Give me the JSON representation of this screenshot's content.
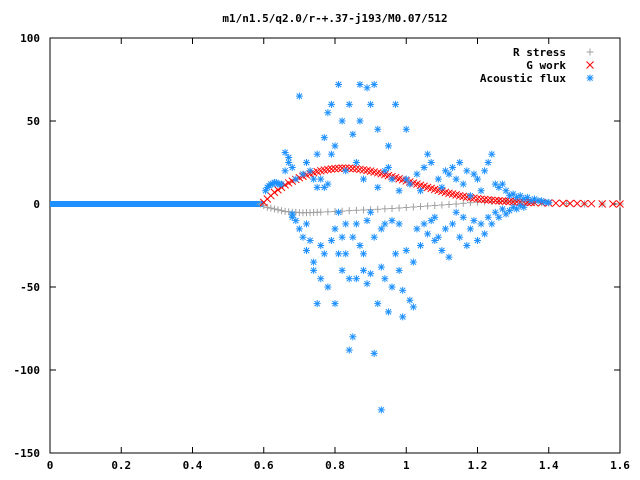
{
  "chart_data": {
    "type": "scatter",
    "title": "m1/n1.5/q2.0/r-+.37-j193/M0.07/512",
    "xlabel": "",
    "ylabel": "",
    "xlim": [
      0,
      1.6
    ],
    "ylim": [
      -150,
      100
    ],
    "x_ticks": [
      0,
      0.2,
      0.4,
      0.6,
      0.8,
      1,
      1.2,
      1.4,
      1.6
    ],
    "x_tick_labels": [
      "0",
      "0.2",
      "0.4",
      "0.6",
      "0.8",
      "1",
      "1.2",
      "1.4",
      "1.6"
    ],
    "y_ticks": [
      -150,
      -100,
      -50,
      0,
      50,
      100
    ],
    "y_tick_labels": [
      "-150",
      "-100",
      "-50",
      "0",
      "50",
      "100"
    ],
    "grid": false,
    "legend_position": "top-right",
    "series": [
      {
        "name": "R stress",
        "marker": "plus",
        "color": "#a0a0a0",
        "x": [
          0.59,
          0.6,
          0.61,
          0.62,
          0.63,
          0.64,
          0.65,
          0.66,
          0.67,
          0.68,
          0.69,
          0.7,
          0.71,
          0.72,
          0.73,
          0.74,
          0.75,
          0.76,
          0.78,
          0.8,
          0.82,
          0.84,
          0.86,
          0.88,
          0.9,
          0.92,
          0.94,
          0.96,
          0.98,
          1.0,
          1.02,
          1.04,
          1.06,
          1.08,
          1.1,
          1.12,
          1.14,
          1.16,
          1.18,
          1.2,
          1.22,
          1.24,
          1.26,
          1.28,
          1.3,
          1.32,
          1.34,
          1.36,
          1.38,
          1.4,
          1.45,
          1.5,
          1.55,
          1.6
        ],
        "y": [
          0,
          -1,
          -2,
          -2.5,
          -3,
          -3.5,
          -4,
          -4.5,
          -4.7,
          -5,
          -5,
          -5.2,
          -5.3,
          -5.2,
          -5.2,
          -5.1,
          -5,
          -4.9,
          -4.7,
          -4.5,
          -4.3,
          -4,
          -3.8,
          -3.6,
          -3.4,
          -3.2,
          -2.9,
          -2.7,
          -2.4,
          -2.1,
          -1.8,
          -1.5,
          -1.2,
          -0.9,
          -0.6,
          -0.3,
          0,
          0.4,
          0.8,
          1.1,
          1.3,
          1.5,
          1.6,
          1.6,
          1.5,
          1.3,
          1.1,
          0.9,
          0.7,
          0.5,
          0.3,
          0.1,
          0,
          0
        ]
      },
      {
        "name": "G work",
        "marker": "cross",
        "color": "#ff0000",
        "x": [
          0.6,
          0.61,
          0.62,
          0.63,
          0.64,
          0.65,
          0.66,
          0.67,
          0.68,
          0.69,
          0.7,
          0.71,
          0.72,
          0.73,
          0.74,
          0.75,
          0.76,
          0.77,
          0.78,
          0.79,
          0.8,
          0.81,
          0.82,
          0.83,
          0.84,
          0.85,
          0.86,
          0.87,
          0.88,
          0.89,
          0.9,
          0.91,
          0.92,
          0.93,
          0.94,
          0.95,
          0.96,
          0.97,
          0.98,
          0.99,
          1.0,
          1.01,
          1.02,
          1.03,
          1.04,
          1.05,
          1.06,
          1.07,
          1.08,
          1.09,
          1.1,
          1.11,
          1.12,
          1.13,
          1.14,
          1.15,
          1.16,
          1.17,
          1.18,
          1.19,
          1.2,
          1.21,
          1.22,
          1.23,
          1.24,
          1.25,
          1.26,
          1.27,
          1.28,
          1.29,
          1.3,
          1.31,
          1.32,
          1.33,
          1.34,
          1.35,
          1.36,
          1.38,
          1.4,
          1.42,
          1.44,
          1.46,
          1.48,
          1.5,
          1.52,
          1.55,
          1.58,
          1.6
        ],
        "y": [
          1,
          3,
          5,
          7,
          8.5,
          10,
          11.5,
          12.7,
          13.8,
          14.8,
          15.8,
          16.7,
          17.5,
          18.2,
          18.9,
          19.5,
          20,
          20.4,
          20.8,
          21.1,
          21.3,
          21.5,
          21.6,
          21.6,
          21.5,
          21.4,
          21.2,
          20.9,
          20.6,
          20.2,
          19.8,
          19.3,
          18.8,
          18.3,
          17.7,
          17.1,
          16.5,
          15.9,
          15.2,
          14.6,
          13.9,
          13.3,
          12.6,
          12,
          11.3,
          10.7,
          10,
          9.4,
          8.8,
          8.2,
          7.6,
          7,
          6.5,
          6,
          5.5,
          5,
          4.6,
          4.2,
          3.8,
          3.5,
          3.2,
          2.9,
          2.7,
          2.5,
          2.3,
          2.1,
          1.9,
          1.8,
          1.7,
          1.5,
          1.4,
          1.3,
          1.2,
          1.1,
          1,
          0.9,
          0.8,
          0.7,
          0.6,
          0.5,
          0.4,
          0.3,
          0.3,
          0.2,
          0.2,
          0.1,
          0.1,
          0
        ]
      },
      {
        "name": "Acoustic flux",
        "marker": "star",
        "color": "#1e90ff",
        "x": [
          0.605,
          0.61,
          0.615,
          0.62,
          0.625,
          0.63,
          0.635,
          0.64,
          0.645,
          0.65,
          0.66,
          0.66,
          0.67,
          0.67,
          0.68,
          0.68,
          0.68,
          0.69,
          0.69,
          0.7,
          0.7,
          0.71,
          0.71,
          0.72,
          0.72,
          0.72,
          0.73,
          0.73,
          0.74,
          0.74,
          0.74,
          0.75,
          0.75,
          0.75,
          0.76,
          0.76,
          0.76,
          0.77,
          0.77,
          0.77,
          0.78,
          0.78,
          0.78,
          0.79,
          0.79,
          0.79,
          0.8,
          0.8,
          0.8,
          0.81,
          0.81,
          0.81,
          0.82,
          0.82,
          0.82,
          0.83,
          0.83,
          0.83,
          0.84,
          0.84,
          0.84,
          0.85,
          0.85,
          0.85,
          0.86,
          0.86,
          0.86,
          0.87,
          0.87,
          0.87,
          0.88,
          0.88,
          0.88,
          0.89,
          0.89,
          0.89,
          0.9,
          0.9,
          0.9,
          0.91,
          0.91,
          0.91,
          0.92,
          0.92,
          0.92,
          0.93,
          0.93,
          0.93,
          0.94,
          0.94,
          0.94,
          0.95,
          0.95,
          0.95,
          0.96,
          0.96,
          0.96,
          0.97,
          0.97,
          0.98,
          0.98,
          0.98,
          0.99,
          0.99,
          1.0,
          1.0,
          1.0,
          1.01,
          1.01,
          1.02,
          1.02,
          1.03,
          1.03,
          1.04,
          1.04,
          1.05,
          1.05,
          1.06,
          1.06,
          1.07,
          1.07,
          1.08,
          1.08,
          1.09,
          1.09,
          1.1,
          1.1,
          1.11,
          1.11,
          1.12,
          1.12,
          1.13,
          1.13,
          1.14,
          1.14,
          1.15,
          1.15,
          1.16,
          1.16,
          1.17,
          1.17,
          1.18,
          1.18,
          1.19,
          1.19,
          1.2,
          1.2,
          1.21,
          1.21,
          1.22,
          1.22,
          1.23,
          1.23,
          1.24,
          1.24,
          1.25,
          1.25,
          1.26,
          1.26,
          1.27,
          1.27,
          1.28,
          1.28,
          1.29,
          1.29,
          1.3,
          1.3,
          1.31,
          1.31,
          1.32,
          1.32,
          1.33,
          1.33,
          1.34,
          1.35,
          1.36,
          1.37,
          1.38,
          1.39,
          1.4
        ],
        "y": [
          8,
          10,
          11,
          12,
          12,
          13,
          13,
          12,
          12,
          12,
          31,
          20,
          25,
          28,
          -6,
          22,
          -8,
          15,
          -10,
          -15,
          65,
          18,
          -20,
          -12,
          25,
          -28,
          -22,
          20,
          -40,
          15,
          -35,
          -60,
          30,
          10,
          -25,
          15,
          -45,
          -30,
          40,
          10,
          55,
          -50,
          12,
          -22,
          60,
          30,
          -15,
          35,
          -60,
          -5,
          72,
          -30,
          -40,
          50,
          -20,
          -30,
          20,
          -12,
          -45,
          60,
          -88,
          -80,
          42,
          -20,
          -45,
          25,
          -12,
          -25,
          50,
          72,
          -30,
          -40,
          15,
          -10,
          -48,
          70,
          -42,
          60,
          -5,
          -20,
          72,
          -90,
          -60,
          10,
          45,
          -124,
          -38,
          -15,
          20,
          -45,
          -12,
          35,
          22,
          -65,
          15,
          -10,
          -50,
          60,
          -30,
          8,
          -40,
          -12,
          -52,
          -68,
          15,
          45,
          -28,
          -58,
          12,
          -35,
          -62,
          18,
          -15,
          8,
          -25,
          22,
          -12,
          -18,
          30,
          -10,
          25,
          -8,
          -22,
          15,
          -20,
          10,
          -28,
          20,
          -15,
          -32,
          18,
          22,
          -12,
          -5,
          15,
          -20,
          25,
          -8,
          12,
          -25,
          20,
          -15,
          5,
          18,
          -10,
          15,
          -22,
          8,
          -12,
          20,
          -18,
          25,
          -8,
          30,
          -12,
          12,
          -5,
          10,
          -8,
          12,
          -3,
          8,
          -6,
          5,
          -4,
          6,
          -2,
          4,
          -3,
          5,
          -1,
          3,
          -2,
          4,
          2,
          3,
          2,
          2,
          1,
          1
        ]
      }
    ],
    "flat_segment": {
      "series": "Acoustic flux",
      "x_range": [
        0,
        0.6
      ],
      "y": 0
    }
  }
}
